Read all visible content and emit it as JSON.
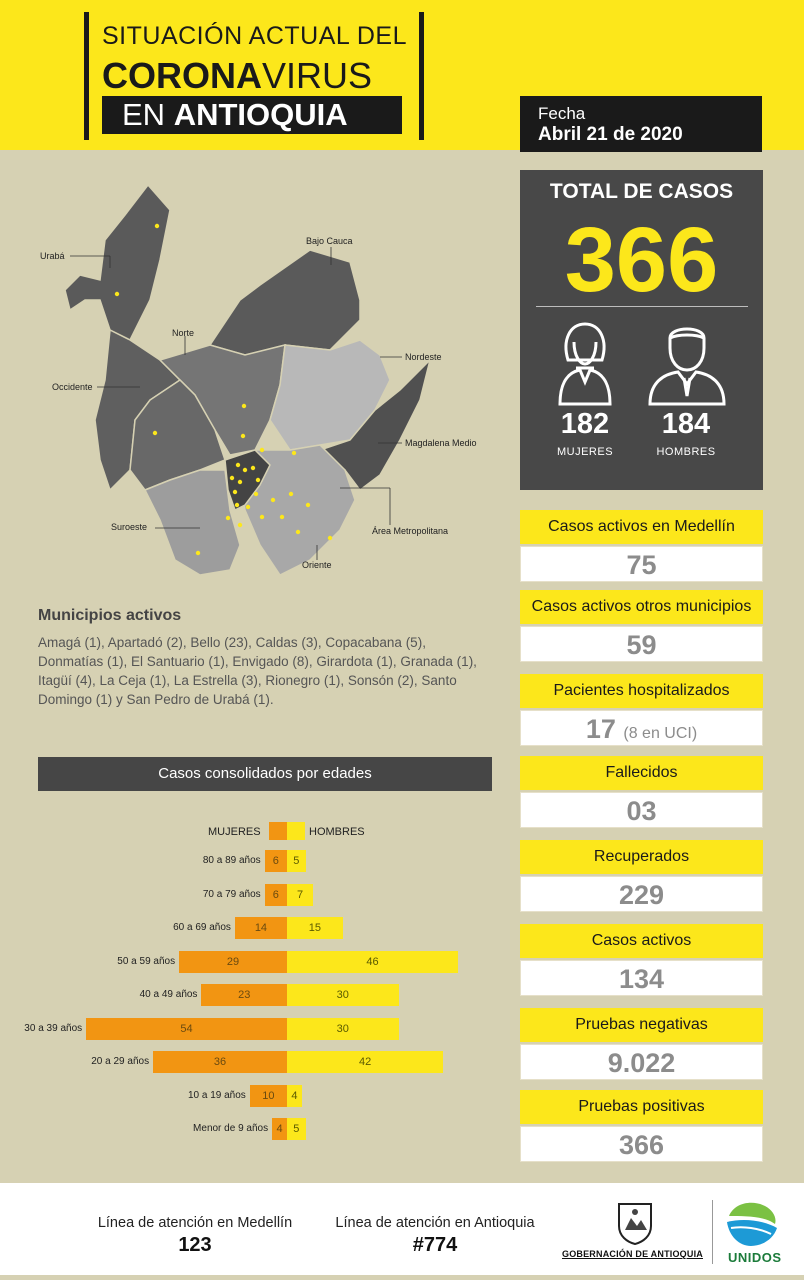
{
  "header": {
    "line1": "SITUACIÓN ACTUAL DEL",
    "line2_bold": "CORONA",
    "line2_rest": "VIRUS",
    "line3_pre": "EN ",
    "line3_bold": "ANTIOQUIA"
  },
  "date": {
    "label": "Fecha",
    "value": "Abril 21 de 2020"
  },
  "total": {
    "title": "TOTAL DE CASOS",
    "value": "366",
    "women": {
      "value": "182",
      "label": "MUJERES"
    },
    "men": {
      "value": "184",
      "label": "HOMBRES"
    }
  },
  "stats": [
    {
      "label": "Casos activos en Medellín",
      "value": "75",
      "extra": ""
    },
    {
      "label": "Casos activos otros municipios",
      "value": "59",
      "extra": ""
    },
    {
      "label": "Pacientes hospitalizados",
      "value": "17",
      "extra": "(8 en UCI)"
    },
    {
      "label": "Fallecidos",
      "value": "03",
      "extra": ""
    },
    {
      "label": "Recuperados",
      "value": "229",
      "extra": ""
    },
    {
      "label": "Casos activos",
      "value": "134",
      "extra": ""
    },
    {
      "label": "Pruebas negativas",
      "value": "9.022",
      "extra": ""
    },
    {
      "label": "Pruebas positivas",
      "value": "366",
      "extra": ""
    }
  ],
  "map_labels": {
    "uraba": "Urabá",
    "bajo_cauca": "Bajo Cauca",
    "norte": "Norte",
    "nordeste": "Nordeste",
    "occidente": "Occidente",
    "magdalena": "Magdalena Medio",
    "suroeste": "Suroeste",
    "area": "Área Metropolitana",
    "oriente": "Oriente"
  },
  "municipios": {
    "title": "Municipios activos",
    "text": "Amagá (1), Apartadó (2), Bello (23), Caldas (3), Copacabana (5), Donmatías (1), El Santuario (1), Envigado (8), Girardota (1), Granada (1), Itagüí (4), La Ceja (1), La Estrella (3), Rionegro (1), Sonsón (2), Santo Domingo (1) y San Pedro de Urabá (1)."
  },
  "ages": {
    "title": "Casos consolidados por edades",
    "legend_women": "MUJERES",
    "legend_men": "HOMBRES",
    "rows": [
      {
        "label": "80 a 89 años",
        "women": 6,
        "men": 5
      },
      {
        "label": "70 a 79 años",
        "women": 6,
        "men": 7
      },
      {
        "label": "60 a 69 años",
        "women": 14,
        "men": 15
      },
      {
        "label": "50 a 59 años",
        "women": 29,
        "men": 46
      },
      {
        "label": "40 a 49 años",
        "women": 23,
        "men": 30
      },
      {
        "label": "30 a 39 años",
        "women": 54,
        "men": 30
      },
      {
        "label": "20 a 29 años",
        "women": 36,
        "men": 42
      },
      {
        "label": "10 a 19 años",
        "women": 10,
        "men": 4
      },
      {
        "label": "Menor de 9 años",
        "women": 4,
        "men": 5
      }
    ]
  },
  "footer": {
    "medellin_label": "Línea de atención en Medellín",
    "medellin_num": "123",
    "antioquia_label": "Línea de atención en Antioquia",
    "antioquia_num": "#774",
    "gov": "GOBERNACIÓN DE ANTIOQUIA",
    "unidos": "UNIDOS"
  },
  "colors": {
    "yellow": "#fce71b",
    "orange": "#f29512",
    "dark": "#484848",
    "background": "#d6d1b3"
  }
}
